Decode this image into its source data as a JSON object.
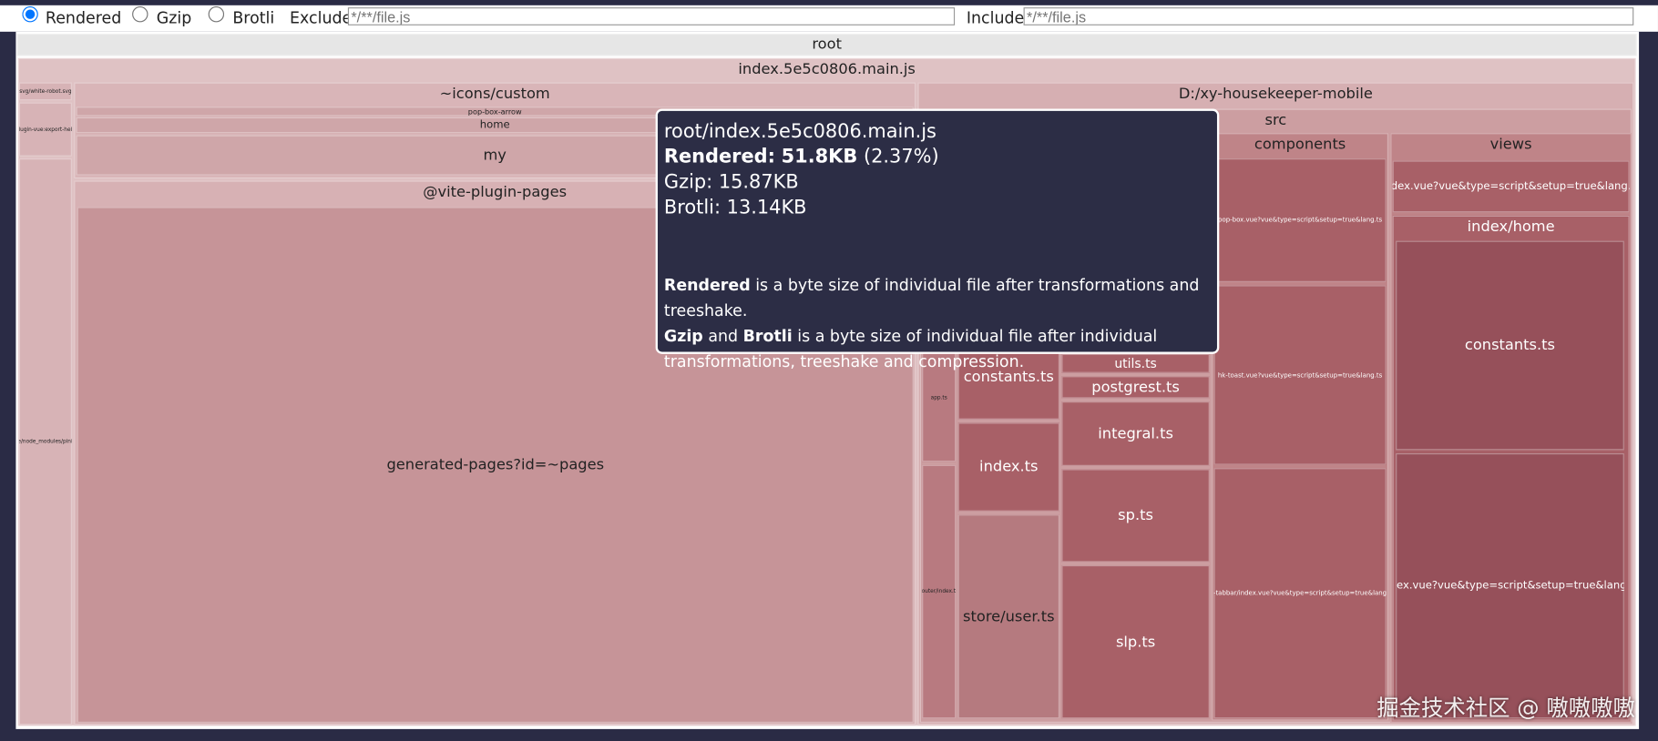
{
  "controls": {
    "options": [
      "Rendered",
      "Gzip",
      "Brotli"
    ],
    "exclude_label": "Exclude",
    "exclude_placeholder": "*/**/file.js",
    "include_label": "Include",
    "include_placeholder": "*/**/file.js"
  },
  "treemap": {
    "root": "root",
    "nodes": [
      "index.5e5c0806.main.js",
      "svg/white-robot.svg",
      "@plugin-vue:export-helper",
      "/home/node_modules/pinia.mjs",
      "~icons/custom",
      "pop-box-arrow",
      "home",
      "my",
      "@vite-plugin-pages",
      "generated-pages?id=~pages",
      "D:/xy-housekeeper-mobile",
      "src",
      "app.ts",
      "router/index.ts",
      "constants.ts",
      "index.ts",
      "store/user.ts",
      "utils.ts",
      "postgrest.ts",
      "integral.ts",
      "sp.ts",
      "slp.ts",
      "components",
      "pop-box.vue?vue&type=script&setup=true&lang.ts",
      "hk-toast.vue?vue&type=script&setup=true&lang.ts",
      "hk-tabbar/index.vue?vue&type=script&setup=true&lang.ts",
      "views",
      "index.vue?vue&type=script&setup=true&lang.ts",
      "index/home",
      "constants.ts",
      "index.vue?vue&type=script&setup=true&lang.ts"
    ]
  },
  "tooltip": {
    "path": "root/index.5e5c0806.main.js",
    "rendered_label": "Rendered:",
    "rendered_value": "51.8KB",
    "rendered_percent": "(2.37%)",
    "gzip": "Gzip: 15.87KB",
    "brotli": "Brotli: 13.14KB",
    "note1": [
      "Rendered",
      "is a byte size of individual file after transformations and treeshake."
    ],
    "note2": [
      "Gzip",
      "and",
      "Brotli",
      "is a byte size of individual file after individual transformations, treeshake and compression."
    ]
  },
  "watermark": "掘金技术社区 @ 嗷嗷嗷嗷"
}
